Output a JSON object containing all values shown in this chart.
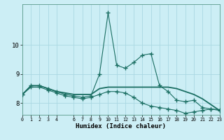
{
  "xlabel": "Humidex (Indice chaleur)",
  "background_color": "#cceef5",
  "grid_color": "#aad8e2",
  "line_color": "#1a6e62",
  "x": [
    0,
    1,
    2,
    3,
    4,
    5,
    6,
    7,
    8,
    9,
    10,
    11,
    12,
    13,
    14,
    15,
    16,
    17,
    18,
    19,
    20,
    21,
    22,
    23
  ],
  "line_peak": [
    8.3,
    8.6,
    8.6,
    8.5,
    8.4,
    8.3,
    8.25,
    8.2,
    8.25,
    9.0,
    11.1,
    9.3,
    9.2,
    9.4,
    9.65,
    9.7,
    8.6,
    8.4,
    8.1,
    8.05,
    8.1,
    7.85,
    7.8,
    7.75
  ],
  "line_flat": [
    8.3,
    8.6,
    8.6,
    8.5,
    8.4,
    8.35,
    8.3,
    8.3,
    8.3,
    8.5,
    8.55,
    8.55,
    8.55,
    8.55,
    8.55,
    8.55,
    8.55,
    8.55,
    8.5,
    8.4,
    8.3,
    8.15,
    7.95,
    7.75
  ],
  "line_low": [
    8.3,
    8.55,
    8.55,
    8.45,
    8.35,
    8.25,
    8.2,
    8.15,
    8.2,
    8.3,
    8.4,
    8.4,
    8.35,
    8.2,
    8.0,
    7.9,
    7.85,
    7.8,
    7.75,
    7.65,
    7.7,
    7.75,
    7.8,
    7.78
  ],
  "xlim": [
    0,
    23
  ],
  "ylim": [
    7.6,
    11.4
  ],
  "yticks": [
    8,
    9,
    10
  ],
  "xticks": [
    0,
    1,
    2,
    3,
    4,
    6,
    7,
    8,
    9,
    10,
    11,
    12,
    13,
    14,
    15,
    16,
    17,
    18,
    19,
    20,
    21,
    22,
    23
  ]
}
